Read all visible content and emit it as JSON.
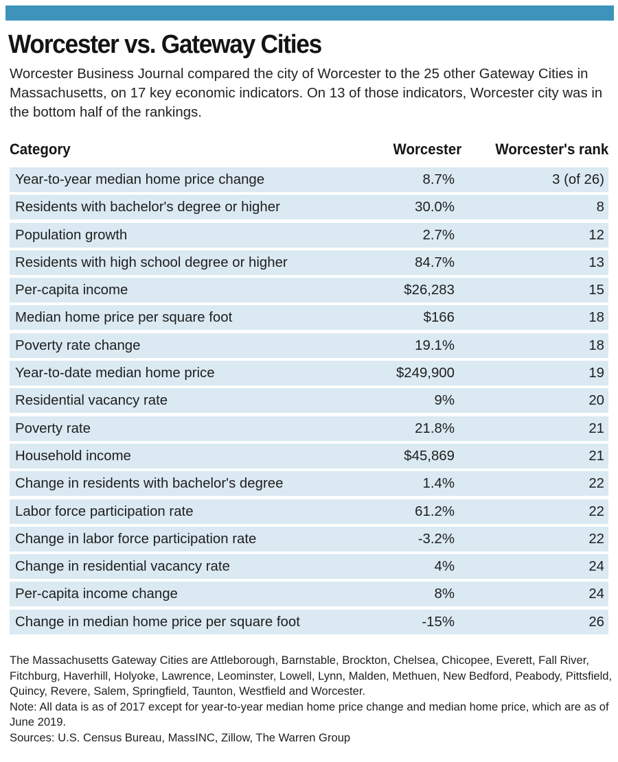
{
  "title": "Worcester vs. Gateway Cities",
  "intro": "Worcester Business Journal compared the city of Worcester to the 25 other Gateway Cities in Massachusetts, on 17 key economic indicators. On 13 of those indicators, Worcester city was in the bottom half of the rankings.",
  "colors": {
    "accent_bar": "#3d93ba",
    "row_background": "#dae9f2"
  },
  "chart_data": {
    "type": "table",
    "columns": [
      "Category",
      "Worcester",
      "Worcester's rank"
    ],
    "rows": [
      {
        "category": "Year-to-year median home price change",
        "value": "8.7%",
        "rank": "3 (of 26)"
      },
      {
        "category": "Residents with bachelor's degree or higher",
        "value": "30.0%",
        "rank": "8"
      },
      {
        "category": "Population growth",
        "value": "2.7%",
        "rank": "12"
      },
      {
        "category": "Residents with high school degree or higher",
        "value": "84.7%",
        "rank": "13"
      },
      {
        "category": "Per-capita income",
        "value": "$26,283",
        "rank": "15"
      },
      {
        "category": "Median home price per square foot",
        "value": "$166",
        "rank": "18"
      },
      {
        "category": "Poverty rate change",
        "value": "19.1%",
        "rank": "18"
      },
      {
        "category": "Year-to-date median home price",
        "value": "$249,900",
        "rank": "19"
      },
      {
        "category": "Residential vacancy rate",
        "value": "9%",
        "rank": "20"
      },
      {
        "category": "Poverty rate",
        "value": "21.8%",
        "rank": "21"
      },
      {
        "category": "Household income",
        "value": "$45,869",
        "rank": "21"
      },
      {
        "category": "Change in residents with bachelor's degree",
        "value": "1.4%",
        "rank": "22"
      },
      {
        "category": "Labor force participation rate",
        "value": "61.2%",
        "rank": "22"
      },
      {
        "category": "Change in labor force participation rate",
        "value": "-3.2%",
        "rank": "22"
      },
      {
        "category": "Change in residential vacancy rate",
        "value": "4%",
        "rank": "24"
      },
      {
        "category": "Per-capita income change",
        "value": "8%",
        "rank": "24"
      },
      {
        "category": "Change in median home price per square foot",
        "value": "-15%",
        "rank": "26"
      }
    ]
  },
  "notes": {
    "gateway_cities": "The Massachusetts Gateway Cities are Attleborough, Barnstable, Brockton, Chelsea, Chicopee, Everett, Fall River, Fitchburg, Haverhill, Holyoke, Lawrence, Leominster, Lowell, Lynn, Malden, Methuen, New Bedford, Peabody, Pittsfield, Quincy, Revere, Salem, Springfield, Taunton, Westfield and Worcester.",
    "note": "Note: All data is as of 2017 except for year-to-year median home price change and median home price, which are as of June 2019.",
    "sources": "Sources: U.S. Census Bureau, MassINC, Zillow, The Warren Group"
  }
}
